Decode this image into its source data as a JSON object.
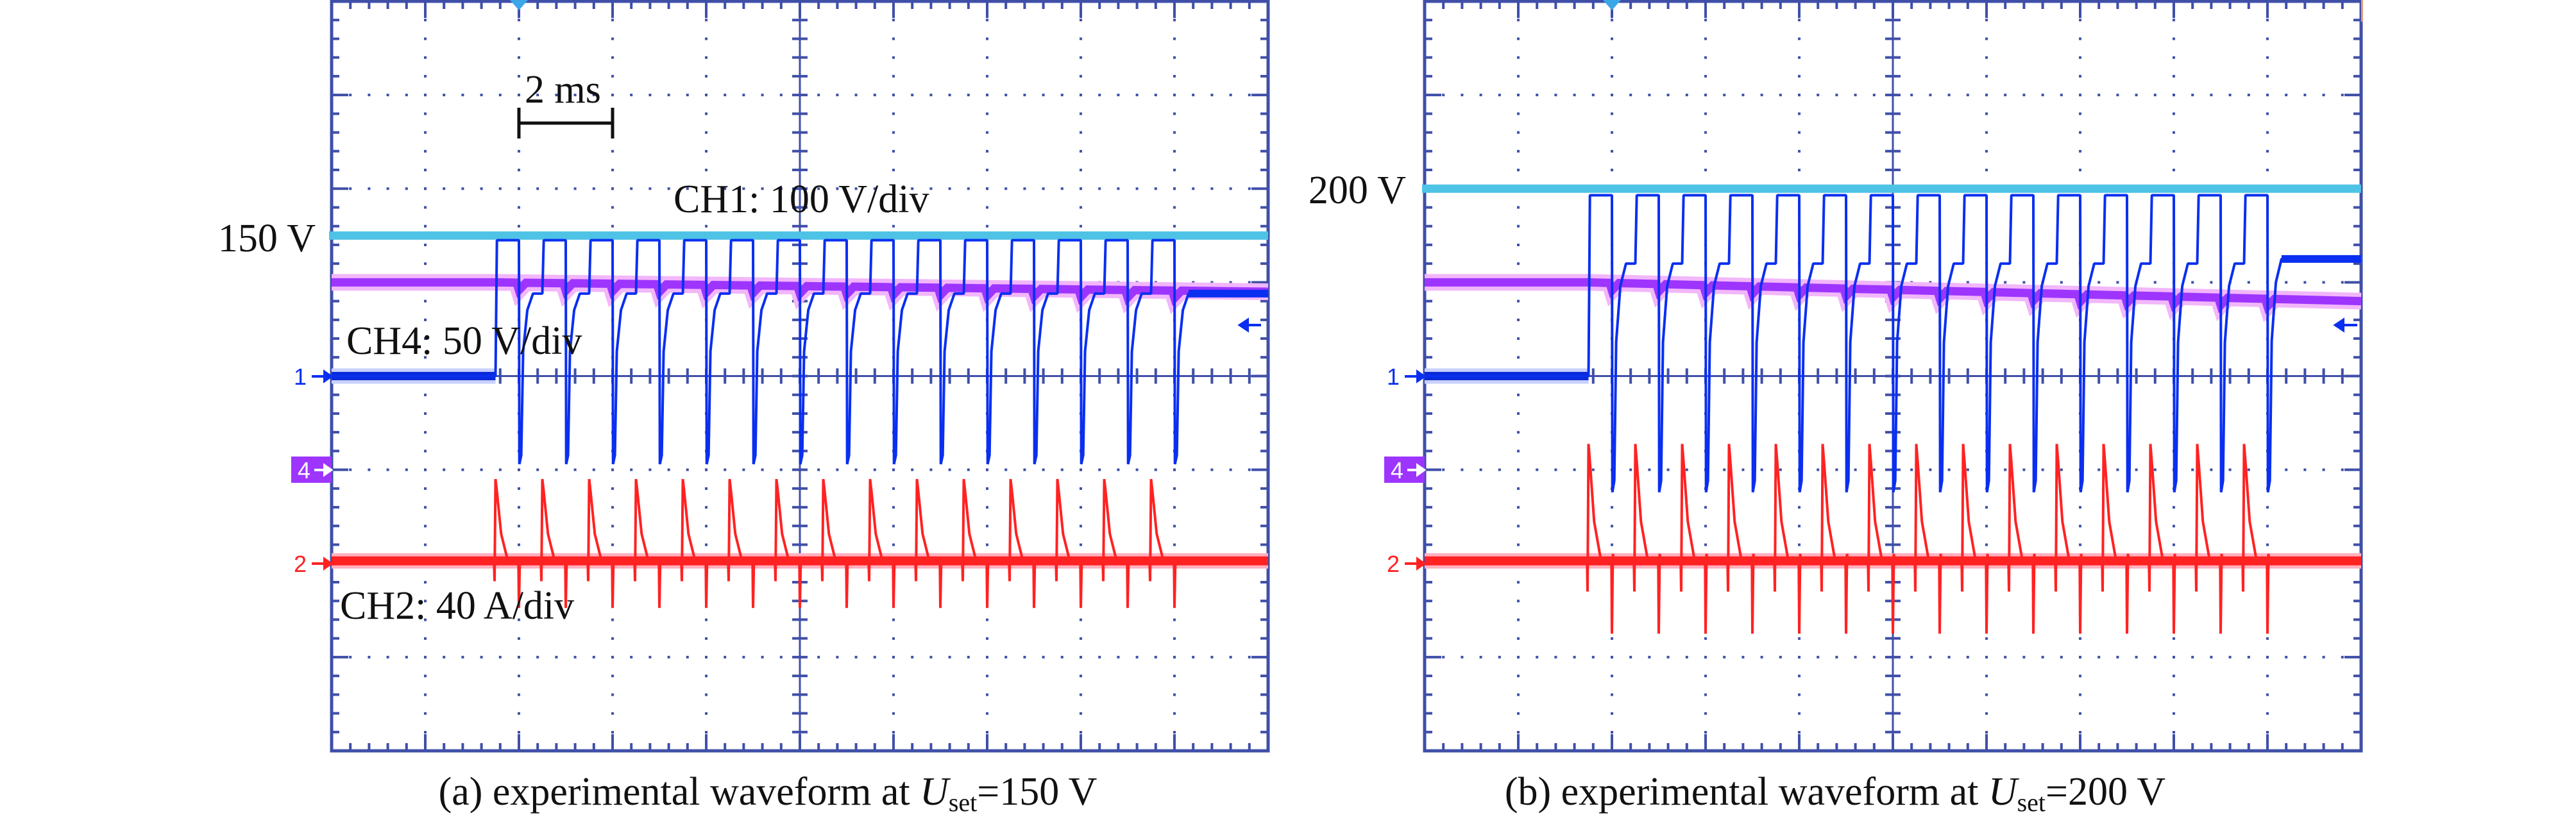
{
  "chart_data": [
    {
      "type": "line",
      "panel": "a",
      "caption": {
        "prefix": "(a) experimental waveform at ",
        "var": "U",
        "sub": "set",
        "suffix": "=150 V"
      },
      "xlim": [
        0,
        20
      ],
      "time_per_div_ms": 2,
      "divisions": {
        "horizontal": 10,
        "vertical": 8
      },
      "scale_bar_label": "2 ms",
      "grid": true,
      "reference": {
        "label": "150 V",
        "value_V": 150,
        "channel": "CH1",
        "color": "#4fc3e6"
      },
      "switching": {
        "first_turn_on_ms": 3.5,
        "period_ms": 1,
        "cycles": 15,
        "off_delay_ms": 0.5
      },
      "channels": [
        {
          "id": "1",
          "name": "CH1",
          "label": "CH1: 100 V/div",
          "unit": "V",
          "per_div": 100,
          "color": "#0a2ff0",
          "idle": 0,
          "high": 145,
          "plateau": 88,
          "min": -94,
          "after": 88
        },
        {
          "id": "4",
          "name": "CH4",
          "label": "CH4: 50 V/div",
          "unit": "V",
          "per_div": 50,
          "color": "#9d35ff",
          "start": 100,
          "end": 95
        },
        {
          "id": "2",
          "name": "CH2",
          "label": "CH2: 40 A/div",
          "unit": "A",
          "per_div": 40,
          "color": "#ff2222",
          "baseline": 0,
          "peak": 36,
          "min": -19
        }
      ]
    },
    {
      "type": "line",
      "panel": "b",
      "caption": {
        "prefix": "(b) experimental waveform at ",
        "var": "U",
        "sub": "set",
        "suffix": "=200 V"
      },
      "xlim": [
        0,
        20
      ],
      "time_per_div_ms": 2,
      "divisions": {
        "horizontal": 10,
        "vertical": 8
      },
      "grid": true,
      "reference": {
        "label": "200 V",
        "value_V": 200,
        "channel": "CH1",
        "color": "#4fc3e6"
      },
      "switching": {
        "first_turn_on_ms": 3.5,
        "period_ms": 1,
        "cycles": 15,
        "off_delay_ms": 0.5
      },
      "channels": [
        {
          "id": "1",
          "name": "CH1",
          "unit": "V",
          "per_div": 100,
          "color": "#0a2ff0",
          "idle": 0,
          "high": 193,
          "plateau": 120,
          "min": -124,
          "after": 125
        },
        {
          "id": "4",
          "name": "CH4",
          "unit": "V",
          "per_div": 50,
          "color": "#9d35ff",
          "start": 100,
          "end": 90
        },
        {
          "id": "2",
          "name": "CH2",
          "unit": "A",
          "per_div": 40,
          "color": "#ff2222",
          "baseline": 0,
          "peak": 51,
          "min": -30
        }
      ]
    }
  ]
}
